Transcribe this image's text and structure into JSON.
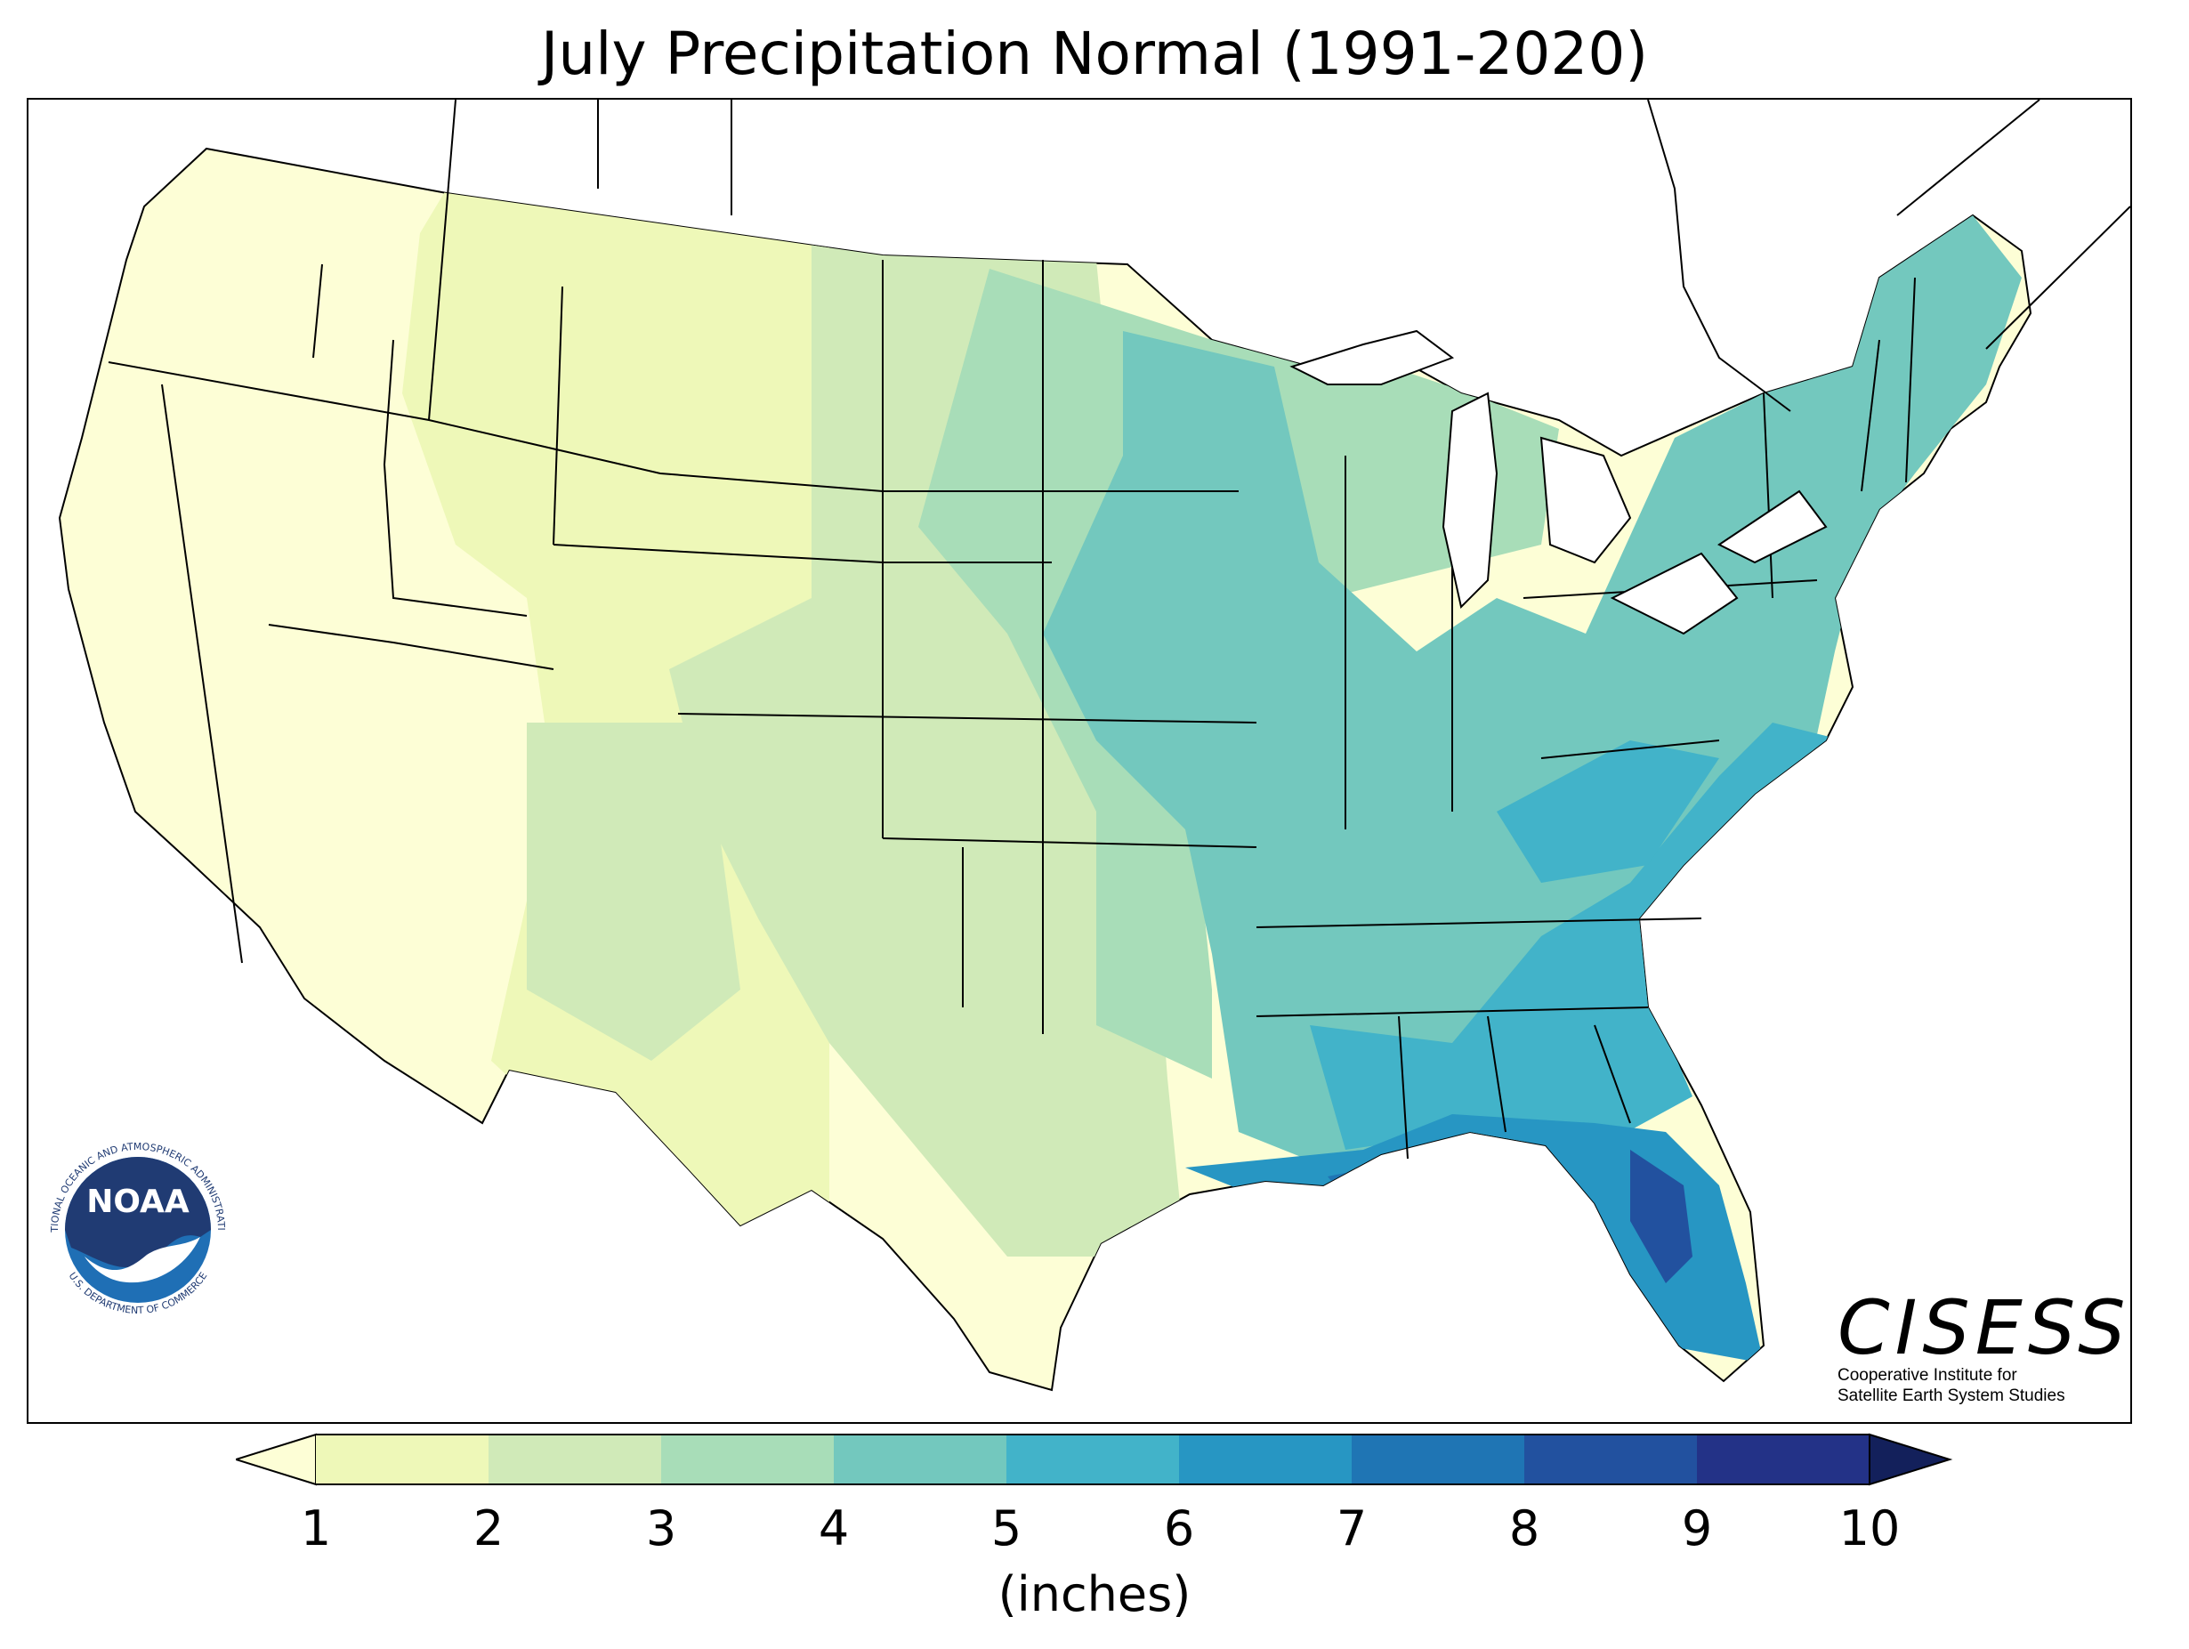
{
  "title": "July Precipitation Normal (1991-2020)",
  "legend": {
    "unit_label": "(inches)",
    "ticks": [
      "1",
      "2",
      "3",
      "4",
      "5",
      "6",
      "7",
      "8",
      "9",
      "10"
    ],
    "colors": [
      "#fdfed6",
      "#eef8b8",
      "#d0eab8",
      "#a8ddb8",
      "#73c8be",
      "#42b3c9",
      "#2796c3",
      "#1f75b4",
      "#22519f",
      "#233287",
      "#13205b"
    ]
  },
  "logos": {
    "noaa_ring_top": "NATIONAL OCEANIC AND ATMOSPHERIC ADMINISTRATION",
    "noaa_ring_bottom": "U.S. DEPARTMENT OF COMMERCE",
    "noaa_center": "NOAA",
    "cisess_wordmark": "CISESS",
    "cisess_line1": "Cooperative Institute for",
    "cisess_line2": "Satellite Earth System Studies"
  }
}
